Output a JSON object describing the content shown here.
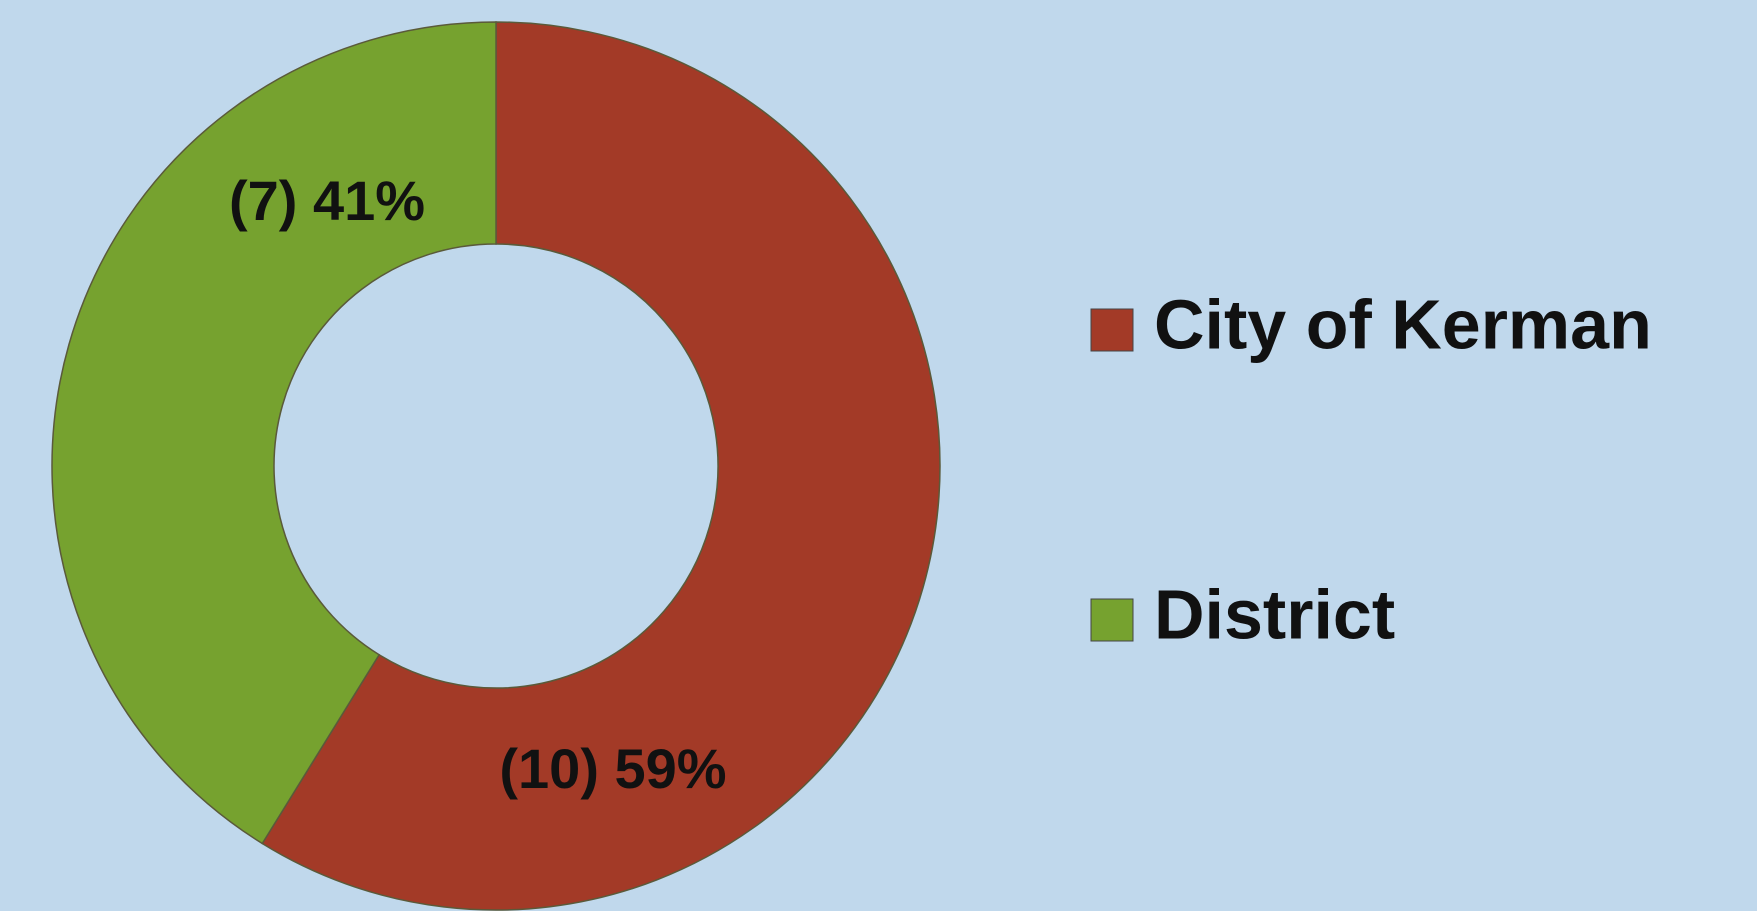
{
  "chart_data": {
    "type": "donut",
    "categories": [
      "City of Kerman",
      "District"
    ],
    "values": [
      10,
      7
    ],
    "value_labels": [
      "(10) 59%",
      "(7) 41%"
    ],
    "colors": [
      "#a33a27",
      "#76a22f"
    ],
    "legend": "right"
  }
}
